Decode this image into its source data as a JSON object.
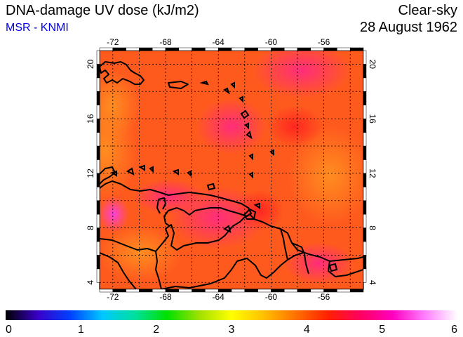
{
  "header": {
    "title": "DNA-damage UV dose (kJ/m2)",
    "source": "MSR - KNMI",
    "sky_condition": "Clear-sky",
    "date": "28 August 1962"
  },
  "map": {
    "longitude_ticks": [
      "-72",
      "-68",
      "-64",
      "-60",
      "-56"
    ],
    "latitude_ticks": [
      "20",
      "16",
      "12",
      "8",
      "4"
    ],
    "grid": true,
    "region": "Caribbean / northern South America"
  },
  "colorbar": {
    "labels": [
      "0",
      "1",
      "2",
      "3",
      "4",
      "5",
      "6"
    ],
    "stops": [
      "#000000",
      "#3a00c8",
      "#0040ff",
      "#00c8ff",
      "#00e0a0",
      "#00e000",
      "#a0e000",
      "#ffff00",
      "#ffc000",
      "#ff7000",
      "#ff2000",
      "#ff0060",
      "#ff00c0",
      "#ff80ff",
      "#ffffff"
    ]
  },
  "colors": {
    "subtitle": "#0000ee",
    "field_base": "#ff5a1e",
    "field_high": "#ff2a6a",
    "field_low": "#ff8a1a"
  }
}
